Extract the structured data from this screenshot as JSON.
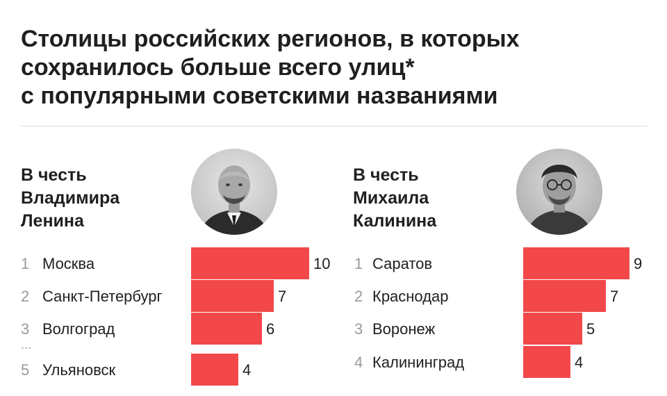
{
  "title_lines": [
    "Столицы российских регионов, в которых",
    "сохранилось больше всего улиц*",
    "с популярными советскими названиями"
  ],
  "colors": {
    "bar": "#f2484a",
    "rank": "#9a9a9a",
    "text": "#1f1f1f",
    "divider": "#dcdcdc"
  },
  "chart_data": [
    {
      "type": "bar",
      "orientation": "horizontal",
      "heading_lines": [
        "В честь",
        "Владимира",
        "Ленина"
      ],
      "ranks": [
        "1",
        "2",
        "3",
        "5"
      ],
      "ellipsis_after_rank": "3",
      "ellipsis_text": "...",
      "categories": [
        "Москва",
        "Санкт-Петербург",
        "Волгоград",
        "Ульяновск"
      ],
      "values": [
        10,
        7,
        6,
        4
      ],
      "value_labels": [
        "10",
        "7",
        "6",
        "4"
      ],
      "xlim": [
        0,
        10
      ],
      "grid": false
    },
    {
      "type": "bar",
      "orientation": "horizontal",
      "heading_lines": [
        "В честь",
        "Михаила",
        "Калинина"
      ],
      "ranks": [
        "1",
        "2",
        "3",
        "4"
      ],
      "categories": [
        "Саратов",
        "Краснодар",
        "Воронеж",
        "Калининград"
      ],
      "values": [
        9,
        7,
        5,
        4
      ],
      "value_labels": [
        "9",
        "7",
        "5",
        "4"
      ],
      "xlim": [
        0,
        10
      ],
      "grid": false
    }
  ]
}
